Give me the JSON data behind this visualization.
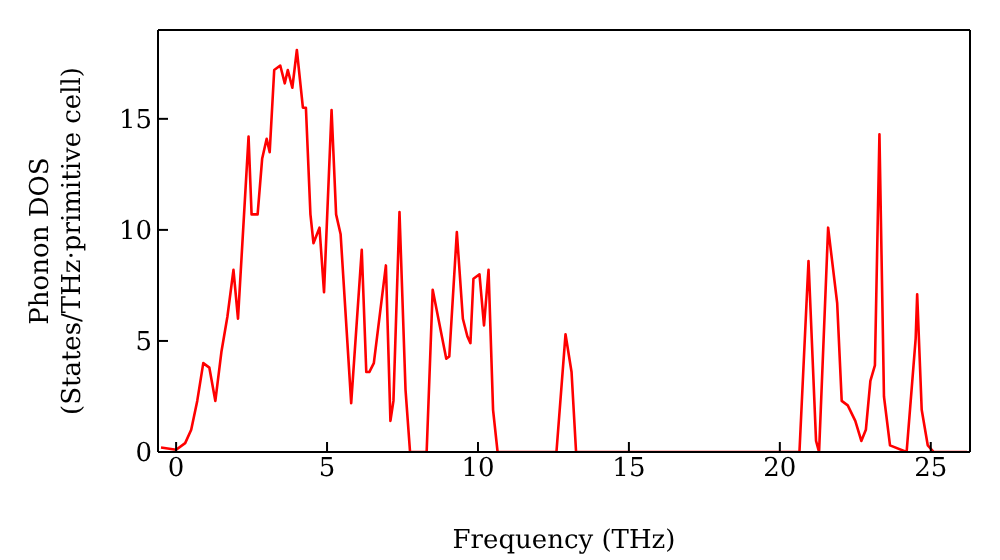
{
  "chart_data": {
    "type": "line",
    "xlabel": "Frequency (THz)",
    "ylabel": "Phonon DOS\n(States/THz·primitive cell)",
    "xlim": [
      -0.6,
      26.3
    ],
    "ylim": [
      0,
      19
    ],
    "xticks": [
      0,
      5,
      10,
      15,
      20,
      25
    ],
    "yticks": [
      0,
      5,
      10,
      15
    ],
    "marker": "none",
    "line_style": "solid",
    "x": [
      -0.5,
      0,
      0.3,
      0.5,
      0.7,
      0.9,
      1.1,
      1.3,
      1.5,
      1.7,
      1.9,
      2.05,
      2.4,
      2.5,
      2.7,
      2.85,
      3.0,
      3.1,
      3.25,
      3.45,
      3.6,
      3.7,
      3.85,
      4.0,
      4.2,
      4.3,
      4.45,
      4.55,
      4.75,
      4.9,
      5.15,
      5.3,
      5.45,
      5.8,
      6.15,
      6.3,
      6.4,
      6.55,
      6.95,
      7.1,
      7.2,
      7.4,
      7.6,
      7.75,
      8.3,
      8.5,
      8.95,
      9.05,
      9.3,
      9.5,
      9.65,
      9.75,
      9.85,
      10.05,
      10.2,
      10.35,
      10.5,
      10.65,
      12.6,
      12.9,
      13.1,
      13.25,
      20.65,
      20.95,
      21.2,
      21.3,
      21.6,
      21.9,
      22.05,
      22.25,
      22.5,
      22.7,
      22.85,
      23.0,
      23.15,
      23.3,
      23.45,
      23.65,
      24.2,
      24.5,
      24.55,
      24.7,
      24.9,
      25.1,
      26.2
    ],
    "series": [
      {
        "color": "#ff0000",
        "values": [
          0.2,
          0.1,
          0.4,
          1,
          2.3,
          4.0,
          3.8,
          2.3,
          4.5,
          6.1,
          8.2,
          6.0,
          14.2,
          10.7,
          10.7,
          13.2,
          14.1,
          13.5,
          17.2,
          17.4,
          16.6,
          17.2,
          16.4,
          18.1,
          15.5,
          15.5,
          10.7,
          9.4,
          10.1,
          7.2,
          15.4,
          10.7,
          9.8,
          2.2,
          9.1,
          3.6,
          3.6,
          4.0,
          8.4,
          1.4,
          2.3,
          10.8,
          2.8,
          0,
          0,
          7.3,
          4.2,
          4.3,
          9.9,
          6.0,
          5.2,
          4.9,
          7.8,
          8.0,
          5.7,
          8.2,
          1.9,
          0,
          0,
          5.3,
          3.6,
          0,
          0,
          8.6,
          0.5,
          0,
          10.1,
          6.7,
          2.3,
          2.1,
          1.4,
          0.5,
          1.0,
          3.2,
          3.9,
          14.3,
          2.5,
          0.3,
          0,
          5.1,
          7.1,
          1.9,
          0.3,
          0,
          0
        ]
      }
    ]
  }
}
